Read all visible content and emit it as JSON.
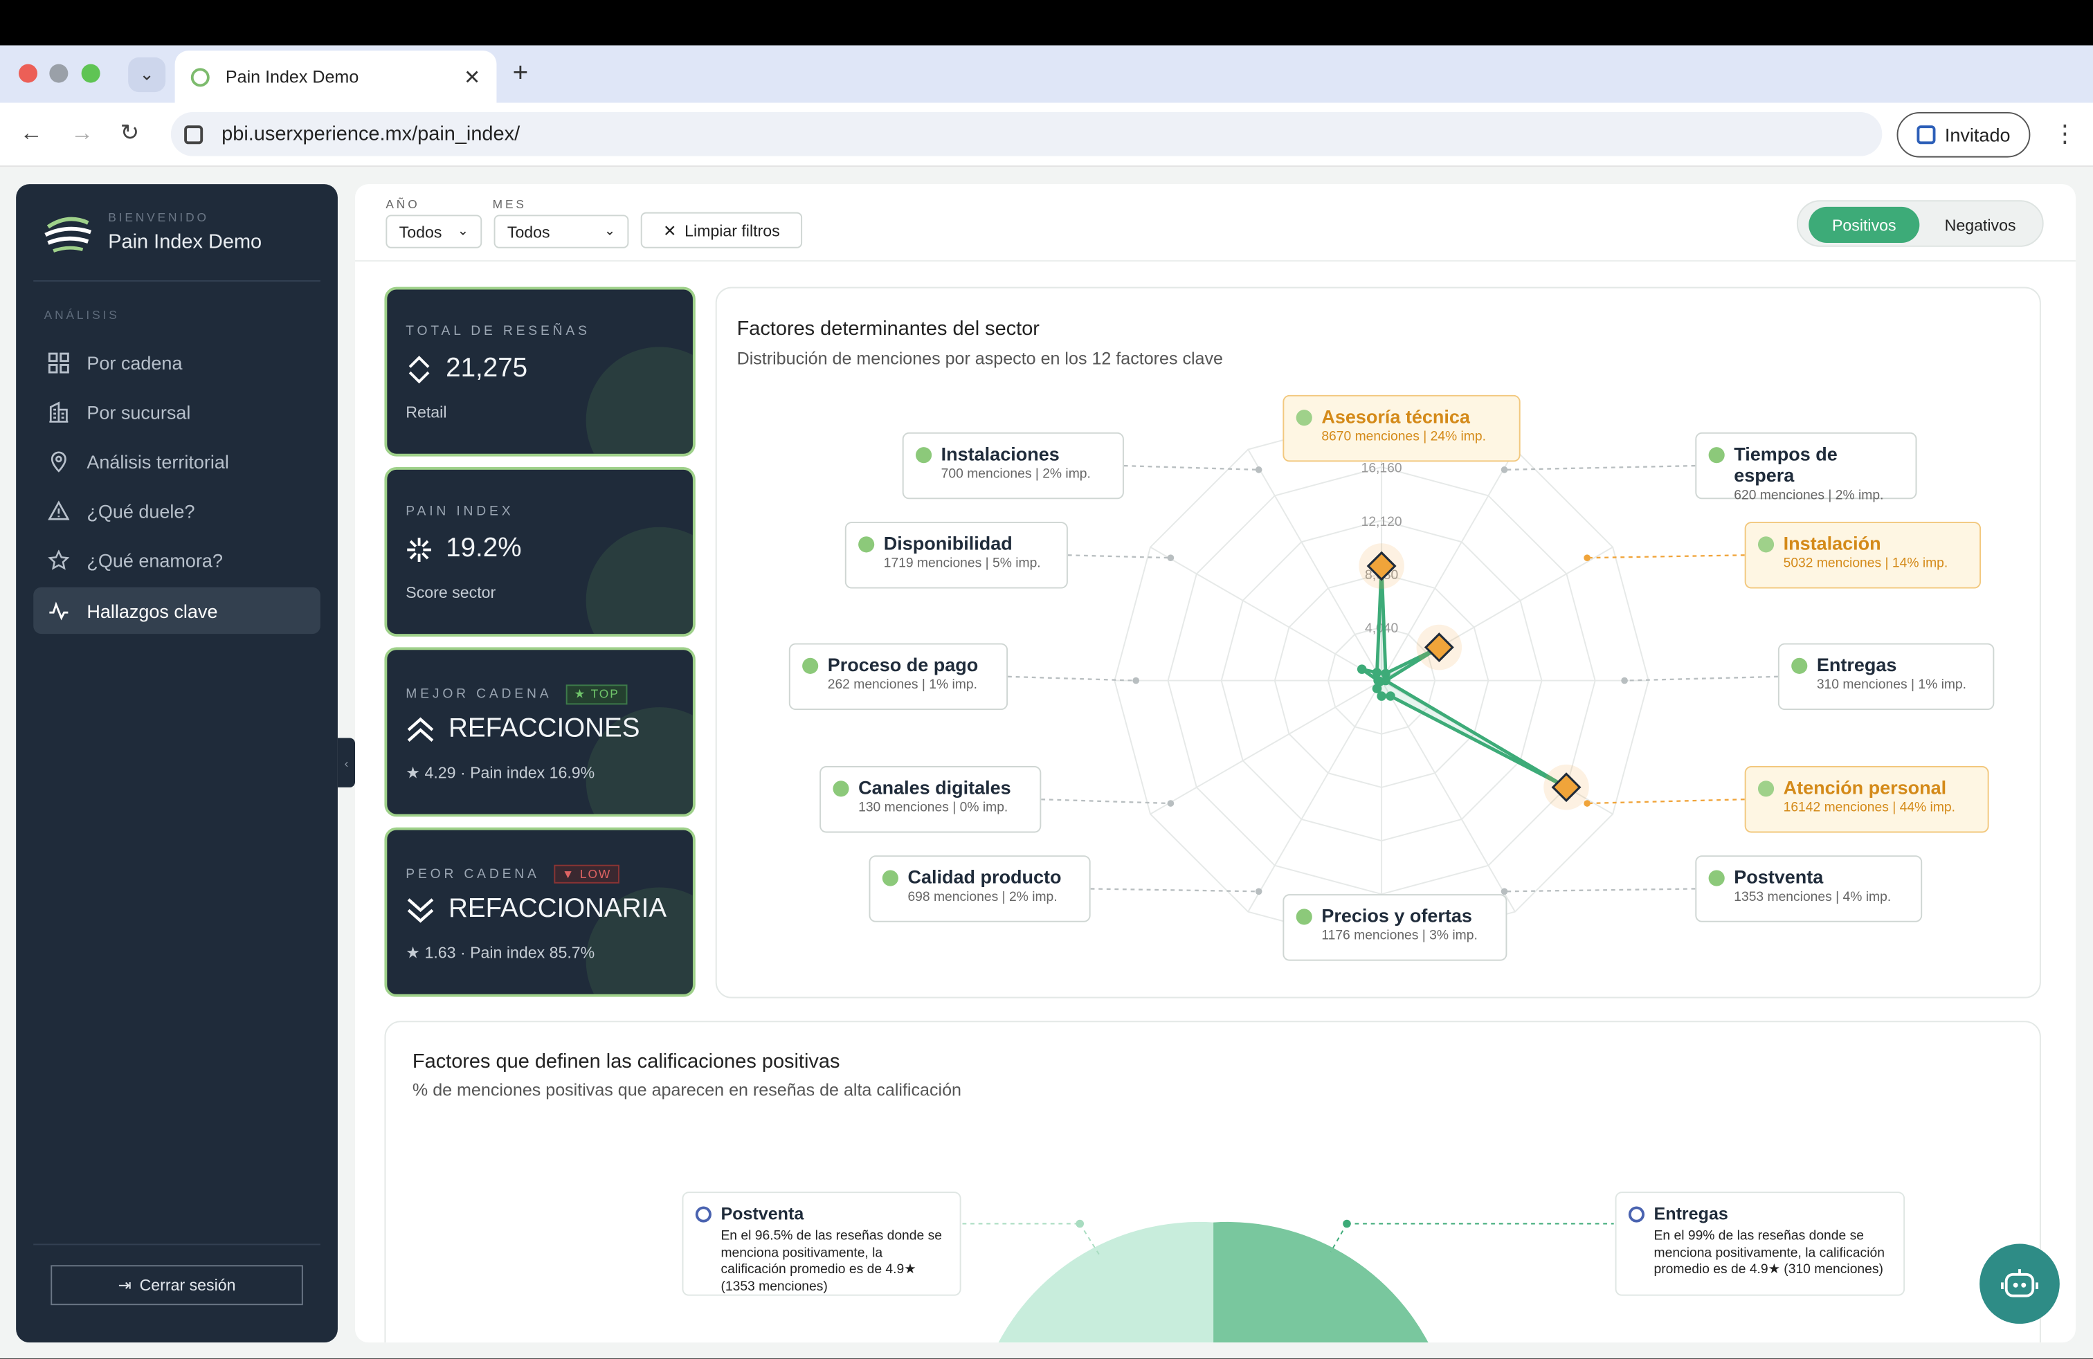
{
  "browser": {
    "tab_title": "Pain Index Demo",
    "url": "pbi.userxperience.mx/pain_index/",
    "profile_label": "Invitado"
  },
  "sidebar": {
    "welcome": "BIENVENIDO",
    "app_name": "Pain Index Demo",
    "section_label": "ANÁLISIS",
    "items": [
      {
        "label": "Por cadena",
        "icon": "grid-icon"
      },
      {
        "label": "Por sucursal",
        "icon": "building-icon"
      },
      {
        "label": "Análisis territorial",
        "icon": "location-pin-icon"
      },
      {
        "label": "¿Qué duele?",
        "icon": "warning-icon"
      },
      {
        "label": "¿Qué enamora?",
        "icon": "star-icon"
      },
      {
        "label": "Hallazgos clave",
        "icon": "activity-icon",
        "active": true
      }
    ],
    "logout_label": "Cerrar sesión"
  },
  "filters": {
    "year_label": "AÑO",
    "year_value": "Todos",
    "month_label": "MES",
    "month_value": "Todos",
    "clear_label": "Limpiar filtros",
    "toggle": {
      "positive": "Positivos",
      "negative": "Negativos",
      "selected": "Positivos"
    }
  },
  "kpis": [
    {
      "label": "TOTAL DE RESEÑAS",
      "value": "21,275",
      "sub": "Retail",
      "icon": "diamond-arrows-icon"
    },
    {
      "label": "PAIN INDEX",
      "value": "19.2%",
      "sub": "Score sector",
      "icon": "snowflake-icon"
    },
    {
      "label": "MEJOR CADENA",
      "badge": "★ TOP",
      "value": "REFACCIONES",
      "sub": "★ 4.29 · Pain index 16.9%",
      "icon": "double-chevron-up-icon"
    },
    {
      "label": "PEOR CADENA",
      "badge": "▼ LOW",
      "value": "REFACCIONARIA",
      "sub": "★ 1.63 · Pain index 85.7%",
      "icon": "double-chevron-down-icon"
    }
  ],
  "radar": {
    "title": "Factores determinantes del sector",
    "subtitle": "Distribución de menciones por aspecto en los 12 factores clave",
    "ring_labels": [
      "16,160",
      "12,120",
      "8,080",
      "4,040"
    ],
    "factors": [
      {
        "name": "Asesoría técnica",
        "stats": "8670 menciones | 24% imp.",
        "highlight": true
      },
      {
        "name": "Tiempos de espera",
        "stats": "620 menciones | 2% imp.",
        "highlight": false
      },
      {
        "name": "Instalación",
        "stats": "5032 menciones | 14% imp.",
        "highlight": true
      },
      {
        "name": "Entregas",
        "stats": "310 menciones | 1% imp.",
        "highlight": false
      },
      {
        "name": "Atención personal",
        "stats": "16142 menciones | 44% imp.",
        "highlight": true
      },
      {
        "name": "Postventa",
        "stats": "1353 menciones | 4% imp.",
        "highlight": false
      },
      {
        "name": "Precios y ofertas",
        "stats": "1176 menciones | 3% imp.",
        "highlight": false
      },
      {
        "name": "Calidad producto",
        "stats": "698 menciones | 2% imp.",
        "highlight": false
      },
      {
        "name": "Canales digitales",
        "stats": "130 menciones | 0% imp.",
        "highlight": false
      },
      {
        "name": "Proceso de pago",
        "stats": "262 menciones | 1% imp.",
        "highlight": false
      },
      {
        "name": "Disponibilidad",
        "stats": "1719 menciones | 5% imp.",
        "highlight": false
      },
      {
        "name": "Instalaciones",
        "stats": "700 menciones | 2% imp.",
        "highlight": false
      }
    ],
    "max": 20200,
    "accent": "#3dab78",
    "highlight_color": "#f0a43a"
  },
  "positive": {
    "title": "Factores que definen las calificaciones positivas",
    "subtitle": "% de menciones positivas que aparecen en reseñas de alta calificación",
    "callouts": [
      {
        "name": "Postventa",
        "text": "En el 96.5% de las reseñas donde se menciona positivamente, la calificación promedio es de 4.9★ (1353 menciones)"
      },
      {
        "name": "Entregas",
        "text": "En el 99% de las reseñas donde se menciona positivamente, la calificación promedio es de 4.9★ (310 menciones)"
      }
    ]
  },
  "colors": {
    "sidebar": "#1f2b3a",
    "accent": "#3dab78",
    "highlight": "#f0a43a"
  }
}
